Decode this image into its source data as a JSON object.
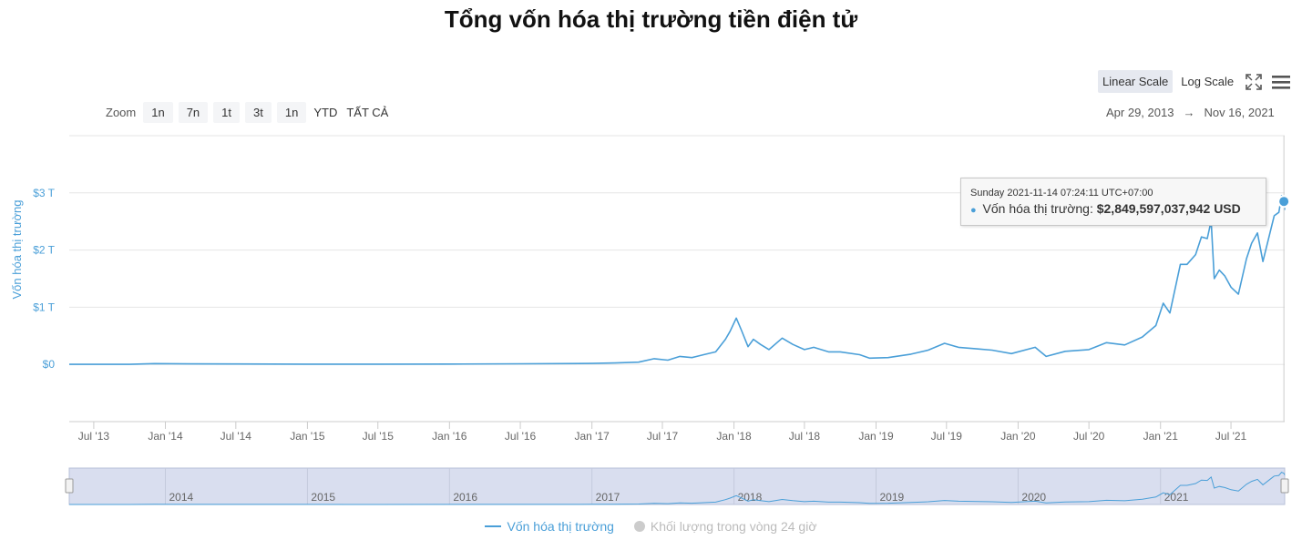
{
  "title": "Tổng vốn hóa thị trường tiền điện tử",
  "scale_buttons": {
    "linear": "Linear Scale",
    "log": "Log Scale"
  },
  "icons": {
    "fullscreen": "fullscreen-icon",
    "menu": "hamburger-menu-icon"
  },
  "zoom": {
    "label": "Zoom",
    "buttons": [
      "1n",
      "7n",
      "1t",
      "3t",
      "1n",
      "YTD",
      "TẤT CẢ"
    ]
  },
  "range": {
    "from": "Apr 29, 2013",
    "arrow": "→",
    "to": "Nov 16, 2021"
  },
  "tooltip": {
    "date": "Sunday 2021-11-14 07:24:11 UTC+07:00",
    "series_label": "Vốn hóa thị trường:",
    "value": "$2,849,597,037,942 USD"
  },
  "legend": {
    "market_cap": "Vốn hóa thị trường",
    "volume": "Khối lượng trong vòng 24 giờ"
  },
  "colors": {
    "series": "#4a9fd8",
    "navigator_fill": "#d9deef"
  },
  "chart_data": {
    "type": "line",
    "title": "Tổng vốn hóa thị trường tiền điện tử",
    "ylabel": "Vốn hóa thị trường",
    "xlabel": "",
    "y_unit": "T (trillion USD)",
    "ylim": [
      -1,
      4
    ],
    "y_ticks": [
      {
        "value": 0,
        "label": "$0"
      },
      {
        "value": 1,
        "label": "$1 T"
      },
      {
        "value": 2,
        "label": "$2 T"
      },
      {
        "value": 3,
        "label": "$3 T"
      }
    ],
    "x_ticks": [
      {
        "date": "2013-07-01",
        "label": "Jul '13"
      },
      {
        "date": "2014-01-01",
        "label": "Jan '14"
      },
      {
        "date": "2014-07-01",
        "label": "Jul '14"
      },
      {
        "date": "2015-01-01",
        "label": "Jan '15"
      },
      {
        "date": "2015-07-01",
        "label": "Jul '15"
      },
      {
        "date": "2016-01-01",
        "label": "Jan '16"
      },
      {
        "date": "2016-07-01",
        "label": "Jul '16"
      },
      {
        "date": "2017-01-01",
        "label": "Jan '17"
      },
      {
        "date": "2017-07-01",
        "label": "Jul '17"
      },
      {
        "date": "2018-01-01",
        "label": "Jan '18"
      },
      {
        "date": "2018-07-01",
        "label": "Jul '18"
      },
      {
        "date": "2019-01-01",
        "label": "Jan '19"
      },
      {
        "date": "2019-07-01",
        "label": "Jul '19"
      },
      {
        "date": "2020-01-01",
        "label": "Jan '20"
      },
      {
        "date": "2020-07-01",
        "label": "Jul '20"
      },
      {
        "date": "2021-01-01",
        "label": "Jan '21"
      },
      {
        "date": "2021-07-01",
        "label": "Jul '21"
      }
    ],
    "navigator_ticks": [
      {
        "date": "2014-01-01",
        "label": "2014"
      },
      {
        "date": "2015-01-01",
        "label": "2015"
      },
      {
        "date": "2016-01-01",
        "label": "2016"
      },
      {
        "date": "2017-01-01",
        "label": "2017"
      },
      {
        "date": "2018-01-01",
        "label": "2018"
      },
      {
        "date": "2019-01-01",
        "label": "2019"
      },
      {
        "date": "2020-01-01",
        "label": "2020"
      },
      {
        "date": "2021-01-01",
        "label": "2021"
      }
    ],
    "series": [
      {
        "name": "Vốn hóa thị trường",
        "points": [
          [
            "2013-04-29",
            0.0015
          ],
          [
            "2013-10-01",
            0.002
          ],
          [
            "2013-12-04",
            0.014
          ],
          [
            "2014-03-01",
            0.009
          ],
          [
            "2014-07-01",
            0.008
          ],
          [
            "2015-01-01",
            0.005
          ],
          [
            "2015-07-01",
            0.004
          ],
          [
            "2016-01-01",
            0.007
          ],
          [
            "2016-07-01",
            0.011
          ],
          [
            "2017-01-01",
            0.018
          ],
          [
            "2017-03-01",
            0.025
          ],
          [
            "2017-05-01",
            0.04
          ],
          [
            "2017-06-10",
            0.1
          ],
          [
            "2017-07-15",
            0.075
          ],
          [
            "2017-08-15",
            0.14
          ],
          [
            "2017-09-15",
            0.12
          ],
          [
            "2017-10-15",
            0.17
          ],
          [
            "2017-11-15",
            0.22
          ],
          [
            "2017-12-10",
            0.44
          ],
          [
            "2017-12-22",
            0.58
          ],
          [
            "2018-01-07",
            0.81
          ],
          [
            "2018-01-20",
            0.6
          ],
          [
            "2018-02-06",
            0.31
          ],
          [
            "2018-02-20",
            0.44
          ],
          [
            "2018-03-10",
            0.35
          ],
          [
            "2018-04-01",
            0.26
          ],
          [
            "2018-05-05",
            0.46
          ],
          [
            "2018-06-01",
            0.35
          ],
          [
            "2018-07-01",
            0.26
          ],
          [
            "2018-07-25",
            0.3
          ],
          [
            "2018-09-01",
            0.22
          ],
          [
            "2018-10-01",
            0.22
          ],
          [
            "2018-11-20",
            0.17
          ],
          [
            "2018-12-15",
            0.11
          ],
          [
            "2019-02-01",
            0.12
          ],
          [
            "2019-04-01",
            0.18
          ],
          [
            "2019-05-15",
            0.25
          ],
          [
            "2019-06-26",
            0.37
          ],
          [
            "2019-08-01",
            0.3
          ],
          [
            "2019-09-20",
            0.27
          ],
          [
            "2019-10-26",
            0.25
          ],
          [
            "2019-12-15",
            0.19
          ],
          [
            "2020-02-14",
            0.3
          ],
          [
            "2020-03-13",
            0.14
          ],
          [
            "2020-05-01",
            0.23
          ],
          [
            "2020-07-01",
            0.26
          ],
          [
            "2020-08-15",
            0.38
          ],
          [
            "2020-10-01",
            0.34
          ],
          [
            "2020-11-15",
            0.48
          ],
          [
            "2020-12-20",
            0.68
          ],
          [
            "2021-01-08",
            1.07
          ],
          [
            "2021-01-25",
            0.9
          ],
          [
            "2021-02-21",
            1.75
          ],
          [
            "2021-03-10",
            1.75
          ],
          [
            "2021-04-01",
            1.92
          ],
          [
            "2021-04-16",
            2.23
          ],
          [
            "2021-05-01",
            2.2
          ],
          [
            "2021-05-11",
            2.51
          ],
          [
            "2021-05-19",
            1.5
          ],
          [
            "2021-06-01",
            1.65
          ],
          [
            "2021-06-15",
            1.55
          ],
          [
            "2021-07-01",
            1.35
          ],
          [
            "2021-07-20",
            1.23
          ],
          [
            "2021-08-10",
            1.85
          ],
          [
            "2021-08-23",
            2.12
          ],
          [
            "2021-09-07",
            2.3
          ],
          [
            "2021-09-21",
            1.8
          ],
          [
            "2021-10-20",
            2.6
          ],
          [
            "2021-11-01",
            2.66
          ],
          [
            "2021-11-08",
            2.95
          ],
          [
            "2021-11-14",
            2.85
          ],
          [
            "2021-11-16",
            2.7
          ]
        ]
      }
    ],
    "highlighted_point": {
      "date": "2021-11-14",
      "value": 2.85
    },
    "grid": true,
    "legend_position": "bottom-center"
  }
}
